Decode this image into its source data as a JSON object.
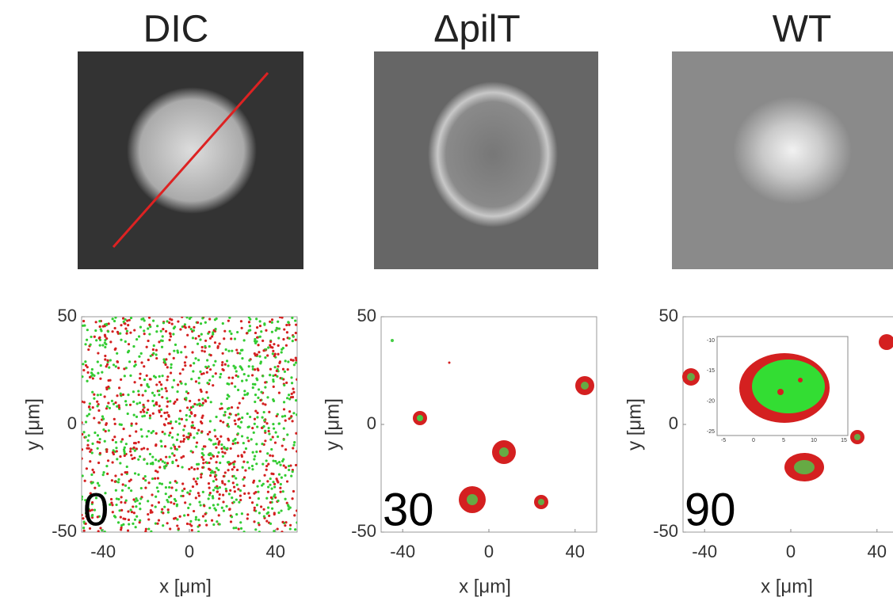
{
  "figure": {
    "titles": [
      "DIC",
      "ΔpilT",
      "WT"
    ],
    "plots": [
      {
        "time_label": "0",
        "x_label": "x [μm]",
        "y_label": "y [μm]",
        "xlim": [
          -50,
          50
        ],
        "ylim": [
          -50,
          50
        ],
        "xticks": [
          -40,
          0,
          40
        ],
        "yticks": [
          -50,
          0,
          50
        ]
      },
      {
        "time_label": "30",
        "x_label": "x [μm]",
        "y_label": "y [μm]",
        "xlim": [
          -50,
          50
        ],
        "ylim": [
          -50,
          50
        ],
        "xticks": [
          -40,
          0,
          40
        ],
        "yticks": [
          -50,
          0,
          50
        ]
      },
      {
        "time_label": "90",
        "x_label": "x [μm]",
        "y_label": "y [μm]",
        "xlim": [
          -50,
          50
        ],
        "ylim": [
          -50,
          50
        ],
        "xticks": [
          -40,
          0,
          40
        ],
        "yticks": [
          -50,
          0,
          50
        ]
      }
    ],
    "inset": {
      "xticks": [
        -5,
        0,
        5,
        10,
        15
      ],
      "yticks": [
        -10,
        -15,
        -20,
        -25
      ]
    }
  }
}
